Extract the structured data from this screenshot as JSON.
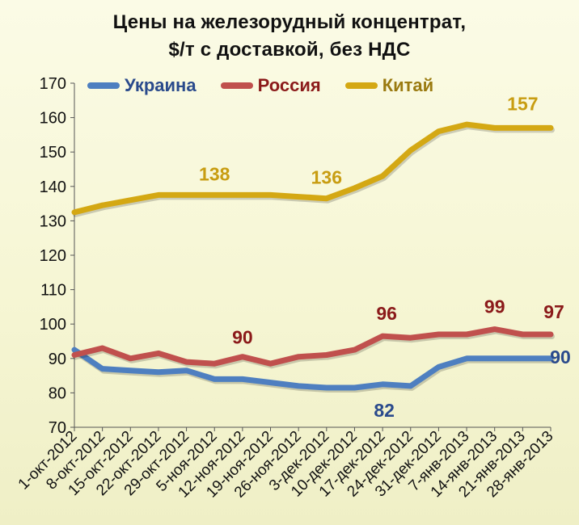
{
  "chart_data": {
    "type": "line",
    "title_lines": [
      "Цены на железорудный концентрат,",
      "$/т  с доставкой, без  НДС"
    ],
    "xlabel": "",
    "ylabel": "",
    "ylim": [
      70,
      170
    ],
    "yticks": [
      70,
      80,
      90,
      100,
      110,
      120,
      130,
      140,
      150,
      160,
      170
    ],
    "categories": [
      "1-окт-2012",
      "8-окт-2012",
      "15-окт-2012",
      "22-окт-2012",
      "29-окт-2012",
      "5-ноя-2012",
      "12-ноя-2012",
      "19-ноя-2012",
      "26-ноя-2012",
      "3-дек-2012",
      "10-дек-2012",
      "17-дек-2012",
      "24-дек-2012",
      "31-дек-2012",
      "7-янв-2013",
      "14-янв-2013",
      "21-янв-2013",
      "28-янв-2013"
    ],
    "grid": false,
    "legend_position": "top",
    "series": [
      {
        "name": "Украина",
        "color": "#4e7fc0",
        "values": [
          92.5,
          87,
          86.5,
          86,
          86.5,
          84,
          84,
          83,
          82,
          81.5,
          81.5,
          82.5,
          82,
          87.5,
          90,
          90,
          90,
          90
        ],
        "labels": [
          {
            "index": 11,
            "text": "82"
          },
          {
            "index": 17,
            "text": "90"
          }
        ]
      },
      {
        "name": "Россия",
        "color": "#c0504d",
        "values": [
          91,
          93,
          90,
          91.5,
          89,
          88.5,
          90.5,
          88.5,
          90.5,
          91,
          92.5,
          96.5,
          96,
          97,
          97,
          98.5,
          97,
          97
        ],
        "labels": [
          {
            "index": 6,
            "text": "90"
          },
          {
            "index": 11,
            "text": "96"
          },
          {
            "index": 15,
            "text": "99"
          },
          {
            "index": 17,
            "text": "97"
          }
        ]
      },
      {
        "name": "Китай",
        "color": "#d4a813",
        "values": [
          132.5,
          134.5,
          136,
          137.5,
          137.5,
          137.5,
          137.5,
          137.5,
          137,
          136.5,
          139.5,
          143,
          150.5,
          156,
          158,
          157,
          157,
          157
        ],
        "labels": [
          {
            "index": 5,
            "text": "138"
          },
          {
            "index": 9,
            "text": "136"
          },
          {
            "index": 16,
            "text": "157"
          }
        ]
      }
    ]
  }
}
